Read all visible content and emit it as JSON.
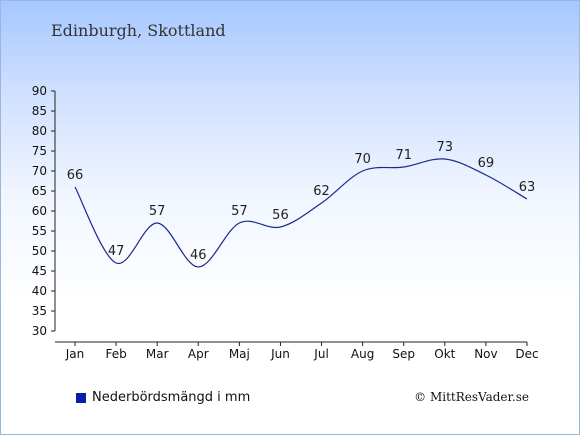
{
  "title": "Edinburgh, Skottland",
  "credit": "© MittResVader.se",
  "colors": {
    "line": "#1a2a8c",
    "legend": "#0a1ca8",
    "axis": "#222222"
  },
  "chart_data": {
    "type": "line",
    "title": "Edinburgh, Skottland",
    "categories": [
      "Jan",
      "Feb",
      "Mar",
      "Apr",
      "Maj",
      "Jun",
      "Jul",
      "Aug",
      "Sep",
      "Okt",
      "Nov",
      "Dec"
    ],
    "series": [
      {
        "name": "Nederbördsmängd i mm",
        "values": [
          66,
          47,
          57,
          46,
          57,
          56,
          62,
          70,
          71,
          73,
          69,
          63
        ]
      }
    ],
    "yticks": [
      30,
      35,
      40,
      45,
      50,
      55,
      60,
      65,
      70,
      75,
      80,
      85,
      90
    ],
    "ylim": [
      30,
      90
    ],
    "grid": false,
    "legend": "bottom-left",
    "xlabel": "",
    "ylabel": ""
  }
}
